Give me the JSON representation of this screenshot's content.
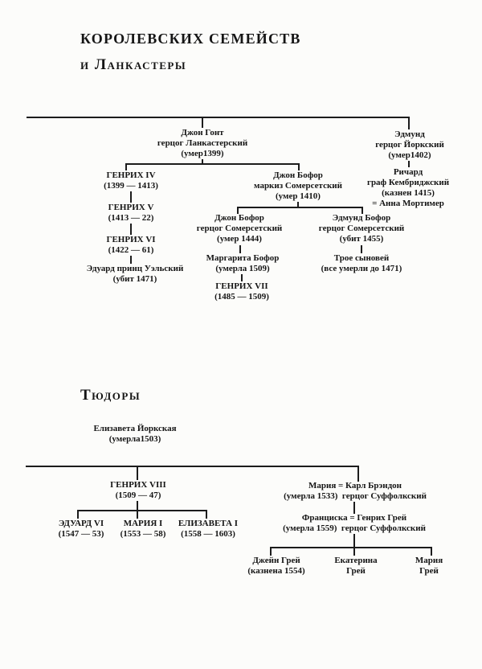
{
  "headings": {
    "title_top": "КОРОЛЕВСКИХ СЕМЕЙСТВ",
    "title_sub": "и Ланкастеры",
    "tudors": "Тюдоры"
  },
  "lancasters": {
    "john_gaunt": [
      "Джон Гонт",
      "герцог Ланкастерский",
      "(умер1399)"
    ],
    "edmund_york": [
      "Эдмунд",
      "герцог Йоркский",
      "(умер1402)"
    ],
    "richard_cambridge": [
      "Ричард",
      "граф Кембриджский",
      "(казнен 1415)",
      "= Анна Мортимер"
    ],
    "henry4": [
      "ГЕНРИХ IV",
      "(1399 — 1413)"
    ],
    "henry5": [
      "ГЕНРИХ V",
      "(1413 — 22)"
    ],
    "henry6": [
      "ГЕНРИХ VI",
      "(1422 — 61)"
    ],
    "edward_wales": [
      "Эдуард принц Уэльский",
      "(убит 1471)"
    ],
    "john_beaufort_marquis": [
      "Джон Бофор",
      "маркиз Сомерсетский",
      "(умер 1410)"
    ],
    "john_beaufort_duke": [
      "Джон Бофор",
      "герцог Сомерсетский",
      "(умер 1444)"
    ],
    "edmund_beaufort": [
      "Эдмунд Бофор",
      "герцог Сомерсетский",
      "(убит 1455)"
    ],
    "margaret_beaufort": [
      "Маргарита Бофор",
      "(умерла 1509)"
    ],
    "henry7": [
      "ГЕНРИХ VII",
      "(1485 — 1509)"
    ],
    "three_sons": [
      "Трое сыновей",
      "(все умерли до 1471)"
    ]
  },
  "tudors": {
    "elizabeth_york": [
      "Елизавета Йоркская",
      "(умерла1503)"
    ],
    "henry8": [
      "ГЕНРИХ VIII",
      "(1509 — 47)"
    ],
    "edward6": [
      "ЭДУАРД VI",
      "(1547 — 53)"
    ],
    "mary1": [
      "МАРИЯ I",
      "(1553 — 58)"
    ],
    "elizabeth1": [
      "ЕЛИЗАВЕТА I",
      "(1558 — 1603)"
    ],
    "mary_brandon": [
      "Мария  =  Карл Брэндон",
      "(умерла 1533) герцог Суффолкский"
    ],
    "francisca_grey": [
      "Франциска  =  Генрих Грей",
      "(умерла 1559) герцог Суффолкский"
    ],
    "jane_grey": [
      "Джейн Грей",
      "(казнена 1554)"
    ],
    "catherine_grey": [
      "Екатерина",
      "Грей"
    ],
    "mary_grey": [
      "Мария",
      "Грей"
    ]
  }
}
